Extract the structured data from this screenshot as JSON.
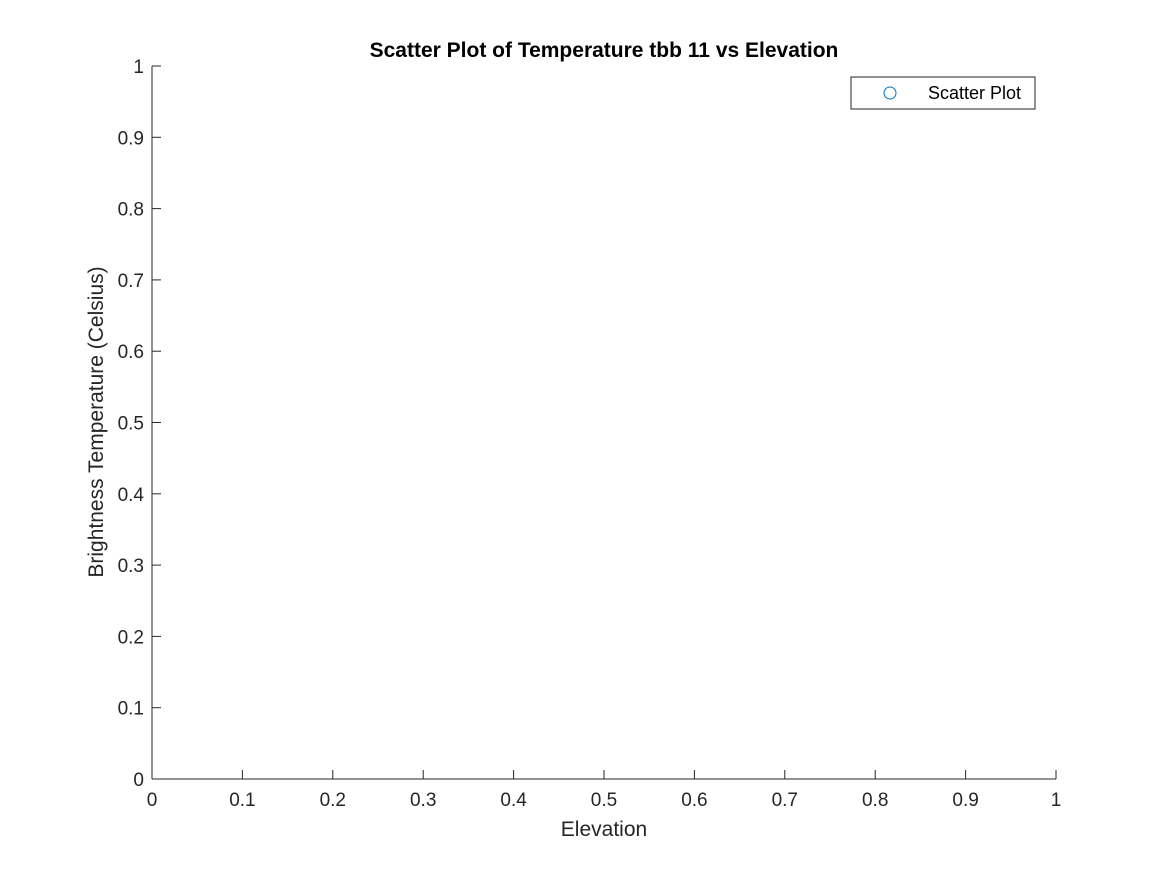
{
  "chart_data": {
    "type": "scatter",
    "title": "Scatter Plot of Temperature tbb 11 vs Elevation",
    "xlabel": "Elevation",
    "ylabel": "Brightness Temperature (Celsius)",
    "xlim": [
      0,
      1
    ],
    "ylim": [
      0,
      1
    ],
    "xticks": [
      0,
      0.1,
      0.2,
      0.3,
      0.4,
      0.5,
      0.6,
      0.7,
      0.8,
      0.9,
      1
    ],
    "xtick_labels": [
      "0",
      "0.1",
      "0.2",
      "0.3",
      "0.4",
      "0.5",
      "0.6",
      "0.7",
      "0.8",
      "0.9",
      "1"
    ],
    "yticks": [
      0,
      0.1,
      0.2,
      0.3,
      0.4,
      0.5,
      0.6,
      0.7,
      0.8,
      0.9,
      1
    ],
    "ytick_labels": [
      "0",
      "0.1",
      "0.2",
      "0.3",
      "0.4",
      "0.5",
      "0.6",
      "0.7",
      "0.8",
      "0.9",
      "1"
    ],
    "grid": false,
    "legend_position": "top-right",
    "series": [
      {
        "name": "Scatter Plot",
        "marker": "circle-open",
        "color": "#0072BD",
        "points": []
      }
    ]
  }
}
